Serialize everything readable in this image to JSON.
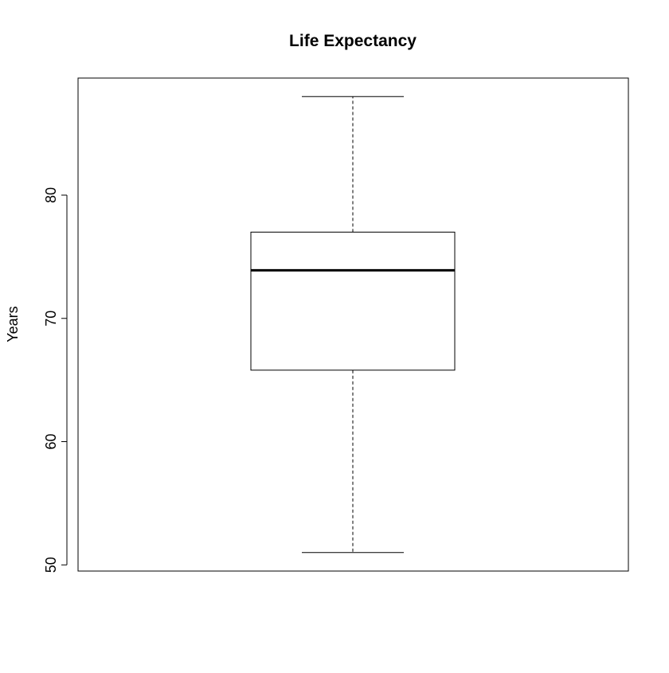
{
  "chart_data": {
    "type": "boxplot",
    "title": "Life Expectancy",
    "xlabel": "",
    "ylabel": "Years",
    "yticks": [
      50,
      60,
      70,
      80
    ],
    "ylim": [
      49.5,
      89.5
    ],
    "grid": false,
    "legend": "none",
    "series": [
      {
        "whisker_low": 51,
        "q1": 65.8,
        "median": 73.9,
        "q3": 77,
        "whisker_high": 88
      }
    ]
  }
}
